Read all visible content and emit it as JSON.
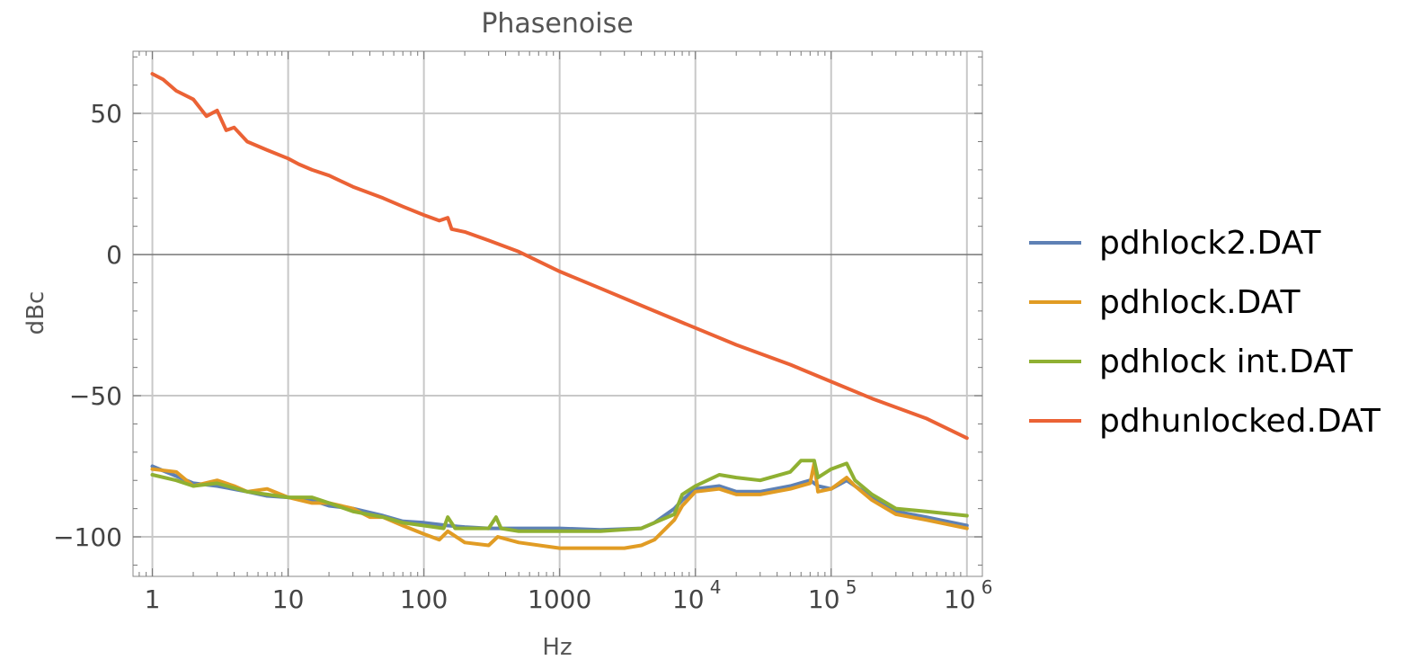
{
  "chart_data": {
    "type": "line",
    "title": "Phasenoise",
    "xlabel": "Hz",
    "ylabel": "dBc",
    "x_scale": "log",
    "xlim": [
      0.72,
      1300000
    ],
    "ylim": [
      -114,
      72
    ],
    "grid": true,
    "legend_position": "right",
    "x_ticks": [
      {
        "value": 1,
        "label": "1",
        "sup": ""
      },
      {
        "value": 10,
        "label": "10",
        "sup": ""
      },
      {
        "value": 100,
        "label": "100",
        "sup": ""
      },
      {
        "value": 1000,
        "label": "1000",
        "sup": ""
      },
      {
        "value": 10000,
        "label": "10",
        "sup": "4"
      },
      {
        "value": 100000,
        "label": "10",
        "sup": "5"
      },
      {
        "value": 1000000,
        "label": "10",
        "sup": "6"
      }
    ],
    "y_ticks": [
      {
        "value": 50,
        "label": "50"
      },
      {
        "value": 0,
        "label": "0"
      },
      {
        "value": -50,
        "label": "−50"
      },
      {
        "value": -100,
        "label": "−100"
      }
    ],
    "series": [
      {
        "name": "pdhlock2.DAT",
        "color": "#5e81b5",
        "points": [
          [
            1,
            -75
          ],
          [
            1.5,
            -78.5
          ],
          [
            2,
            -81
          ],
          [
            3,
            -82
          ],
          [
            5,
            -84
          ],
          [
            7,
            -85.5
          ],
          [
            10,
            -86
          ],
          [
            15,
            -87
          ],
          [
            20,
            -89
          ],
          [
            30,
            -90
          ],
          [
            50,
            -92.5
          ],
          [
            70,
            -94.5
          ],
          [
            100,
            -95
          ],
          [
            150,
            -96
          ],
          [
            200,
            -96.5
          ],
          [
            300,
            -97
          ],
          [
            500,
            -97
          ],
          [
            1000,
            -97
          ],
          [
            2000,
            -97.5
          ],
          [
            4000,
            -97
          ],
          [
            5000,
            -95
          ],
          [
            7000,
            -90
          ],
          [
            8000,
            -87
          ],
          [
            10000,
            -83
          ],
          [
            15000,
            -82
          ],
          [
            20000,
            -84
          ],
          [
            30000,
            -84
          ],
          [
            50000,
            -82
          ],
          [
            70000,
            -80
          ],
          [
            80000,
            -82
          ],
          [
            100000,
            -83
          ],
          [
            130000,
            -80
          ],
          [
            150000,
            -82
          ],
          [
            200000,
            -86
          ],
          [
            300000,
            -91
          ],
          [
            500000,
            -93
          ],
          [
            1000000,
            -96
          ]
        ]
      },
      {
        "name": "pdhlock.DAT",
        "color": "#e19c24",
        "points": [
          [
            1,
            -76
          ],
          [
            1.5,
            -77
          ],
          [
            2,
            -82
          ],
          [
            3,
            -80
          ],
          [
            4,
            -82
          ],
          [
            5,
            -84
          ],
          [
            7,
            -83
          ],
          [
            10,
            -86
          ],
          [
            15,
            -88
          ],
          [
            20,
            -88
          ],
          [
            30,
            -90
          ],
          [
            40,
            -93
          ],
          [
            50,
            -93
          ],
          [
            70,
            -96
          ],
          [
            100,
            -99
          ],
          [
            130,
            -101
          ],
          [
            150,
            -98
          ],
          [
            200,
            -102
          ],
          [
            300,
            -103
          ],
          [
            350,
            -100
          ],
          [
            500,
            -102
          ],
          [
            1000,
            -104
          ],
          [
            2000,
            -104
          ],
          [
            3000,
            -104
          ],
          [
            4000,
            -103
          ],
          [
            5000,
            -101
          ],
          [
            7000,
            -94
          ],
          [
            8000,
            -89
          ],
          [
            10000,
            -84
          ],
          [
            15000,
            -83
          ],
          [
            20000,
            -85
          ],
          [
            30000,
            -85
          ],
          [
            50000,
            -83
          ],
          [
            70000,
            -81
          ],
          [
            75000,
            -74
          ],
          [
            80000,
            -84
          ],
          [
            100000,
            -83
          ],
          [
            130000,
            -79
          ],
          [
            150000,
            -82
          ],
          [
            200000,
            -87
          ],
          [
            300000,
            -92
          ],
          [
            500000,
            -94
          ],
          [
            1000000,
            -97
          ]
        ]
      },
      {
        "name": "pdhlock int.DAT",
        "color": "#8fb032",
        "points": [
          [
            1,
            -78
          ],
          [
            1.5,
            -80
          ],
          [
            2,
            -82
          ],
          [
            3,
            -81
          ],
          [
            5,
            -84
          ],
          [
            7,
            -85
          ],
          [
            10,
            -86
          ],
          [
            15,
            -86
          ],
          [
            20,
            -88
          ],
          [
            30,
            -91
          ],
          [
            50,
            -93
          ],
          [
            70,
            -95
          ],
          [
            100,
            -96
          ],
          [
            140,
            -97
          ],
          [
            150,
            -93
          ],
          [
            170,
            -97
          ],
          [
            200,
            -97
          ],
          [
            300,
            -97
          ],
          [
            340,
            -93
          ],
          [
            370,
            -97
          ],
          [
            500,
            -98
          ],
          [
            1000,
            -98
          ],
          [
            2000,
            -98
          ],
          [
            4000,
            -97
          ],
          [
            5000,
            -95
          ],
          [
            7000,
            -92
          ],
          [
            8000,
            -85
          ],
          [
            10000,
            -82
          ],
          [
            15000,
            -78
          ],
          [
            20000,
            -79
          ],
          [
            30000,
            -80
          ],
          [
            50000,
            -77
          ],
          [
            60000,
            -73
          ],
          [
            75000,
            -73
          ],
          [
            80000,
            -79
          ],
          [
            100000,
            -76
          ],
          [
            130000,
            -74
          ],
          [
            150000,
            -80
          ],
          [
            200000,
            -85
          ],
          [
            300000,
            -90
          ],
          [
            500000,
            -91
          ],
          [
            1000000,
            -92.5
          ]
        ]
      },
      {
        "name": "pdhunlocked.DAT",
        "color": "#eb6235",
        "points": [
          [
            1,
            64
          ],
          [
            1.2,
            62
          ],
          [
            1.5,
            58
          ],
          [
            2,
            55
          ],
          [
            2.5,
            49
          ],
          [
            3,
            51
          ],
          [
            3.5,
            44
          ],
          [
            4,
            45
          ],
          [
            5,
            40
          ],
          [
            7,
            37
          ],
          [
            10,
            34
          ],
          [
            12,
            32
          ],
          [
            15,
            30
          ],
          [
            20,
            28
          ],
          [
            30,
            24
          ],
          [
            50,
            20
          ],
          [
            70,
            17
          ],
          [
            100,
            14
          ],
          [
            130,
            12
          ],
          [
            150,
            13
          ],
          [
            160,
            9
          ],
          [
            200,
            8
          ],
          [
            300,
            5
          ],
          [
            500,
            1
          ],
          [
            1000,
            -6
          ],
          [
            2000,
            -12
          ],
          [
            5000,
            -20
          ],
          [
            10000,
            -26
          ],
          [
            20000,
            -32
          ],
          [
            50000,
            -39
          ],
          [
            100000,
            -45
          ],
          [
            200000,
            -51
          ],
          [
            500000,
            -58
          ],
          [
            1000000,
            -65
          ]
        ]
      }
    ]
  }
}
